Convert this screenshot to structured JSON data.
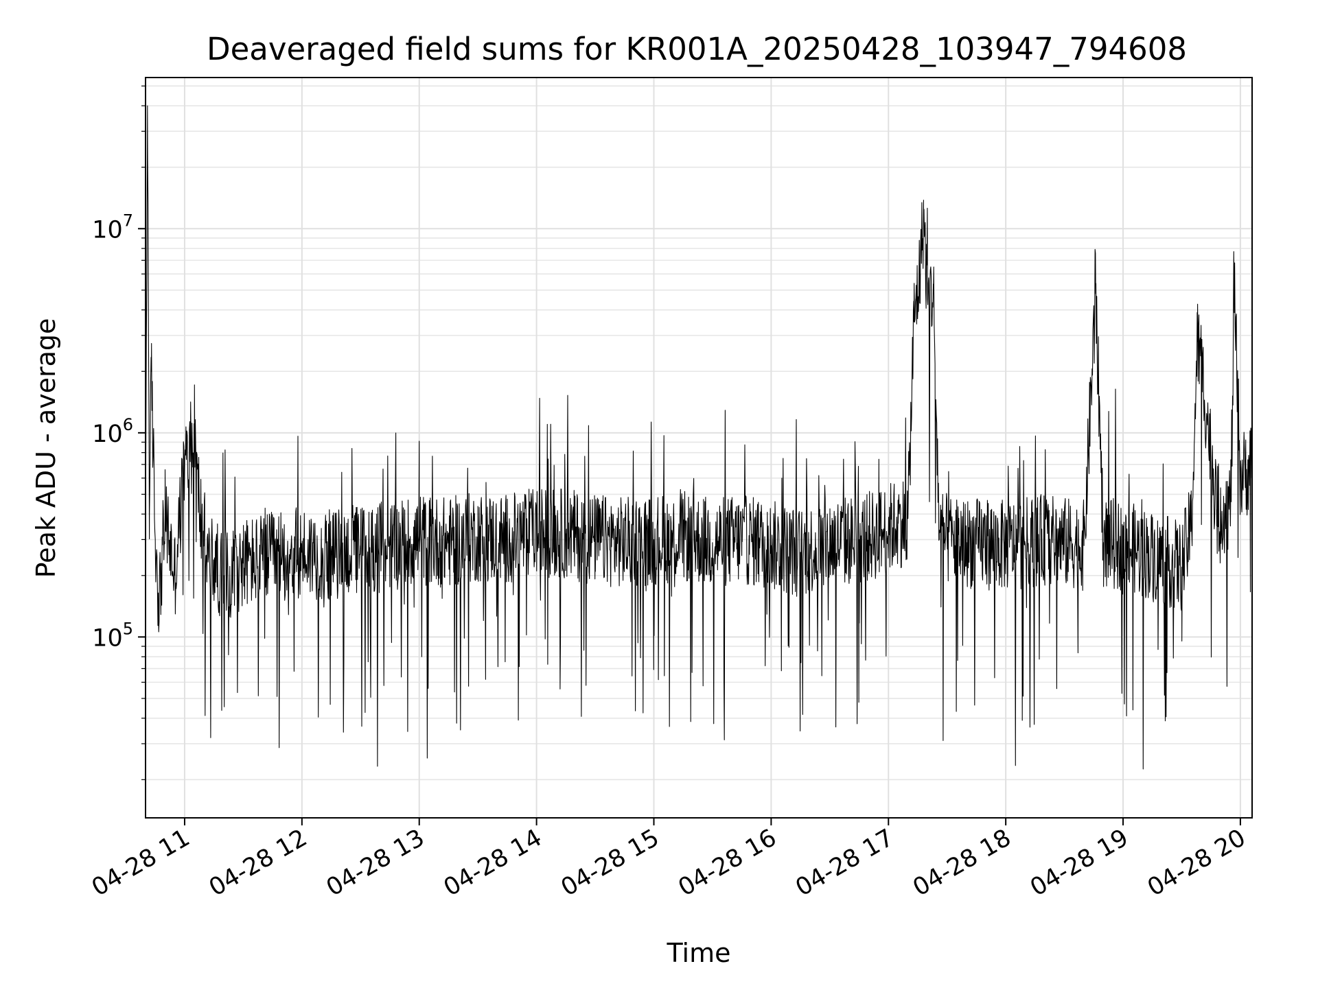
{
  "chart_data": {
    "type": "line",
    "title": "Deaveraged field sums for KR001A_20250428_103947_794608",
    "xlabel": "Time",
    "ylabel": "Peak ADU - average",
    "yscale": "log",
    "xlim": [
      "04-28 10:40",
      "04-28 20:06"
    ],
    "ylim": [
      13000,
      55000000
    ],
    "grid": true,
    "x_ticks": [
      "04-28 11",
      "04-28 12",
      "04-28 13",
      "04-28 14",
      "04-28 15",
      "04-28 16",
      "04-28 17",
      "04-28 18",
      "04-28 19",
      "04-28 20"
    ],
    "y_ticks": [
      {
        "base": "10",
        "exp": "5",
        "value": 100000
      },
      {
        "base": "10",
        "exp": "6",
        "value": 1000000
      },
      {
        "base": "10",
        "exp": "7",
        "value": 10000000
      }
    ],
    "series": [
      {
        "color": "#000000",
        "x": [
          "04-28 10:40",
          "04-28 10:41",
          "04-28 10:42",
          "04-28 10:43",
          "04-28 10:45",
          "04-28 10:47",
          "04-28 10:50",
          "04-28 10:55",
          "04-28 11:00",
          "04-28 11:05",
          "04-28 11:08",
          "04-28 11:12",
          "04-28 11:20",
          "04-28 11:30",
          "04-28 11:40",
          "04-28 11:50",
          "04-28 12:00",
          "04-28 12:15",
          "04-28 12:30",
          "04-28 12:45",
          "04-28 13:00",
          "04-28 13:15",
          "04-28 13:30",
          "04-28 13:45",
          "04-28 14:00",
          "04-28 14:15",
          "04-28 14:30",
          "04-28 14:45",
          "04-28 15:00",
          "04-28 15:15",
          "04-28 15:30",
          "04-28 15:45",
          "04-28 16:00",
          "04-28 16:15",
          "04-28 16:30",
          "04-28 16:45",
          "04-28 16:55",
          "04-28 17:00",
          "04-28 17:05",
          "04-28 17:10",
          "04-28 17:13",
          "04-28 17:16",
          "04-28 17:18",
          "04-28 17:20",
          "04-28 17:23",
          "04-28 17:26",
          "04-28 17:30",
          "04-28 17:40",
          "04-28 18:00",
          "04-28 18:20",
          "04-28 18:40",
          "04-28 18:46",
          "04-28 18:50",
          "04-28 19:00",
          "04-28 19:10",
          "04-28 19:20",
          "04-28 19:30",
          "04-28 19:35",
          "04-28 19:38",
          "04-28 19:40",
          "04-28 19:43",
          "04-28 19:48",
          "04-28 19:55",
          "04-28 19:57",
          "04-28 20:00",
          "04-28 20:06"
        ],
        "y": [
          300000,
          40000000,
          400000,
          2000000,
          300000,
          150000,
          400000,
          200000,
          700000,
          900000,
          400000,
          250000,
          200000,
          230000,
          240000,
          250000,
          260000,
          250000,
          270000,
          280000,
          300000,
          290000,
          310000,
          300000,
          330000,
          320000,
          300000,
          290000,
          300000,
          310000,
          290000,
          300000,
          280000,
          260000,
          290000,
          300000,
          320000,
          340000,
          360000,
          380000,
          3500000,
          6000000,
          11500000,
          4500000,
          5000000,
          320000,
          300000,
          290000,
          280000,
          300000,
          280000,
          4800000,
          290000,
          280000,
          260000,
          240000,
          220000,
          350000,
          2800000,
          2200000,
          1200000,
          420000,
          440000,
          4400000,
          600000,
          700000
        ]
      }
    ]
  }
}
